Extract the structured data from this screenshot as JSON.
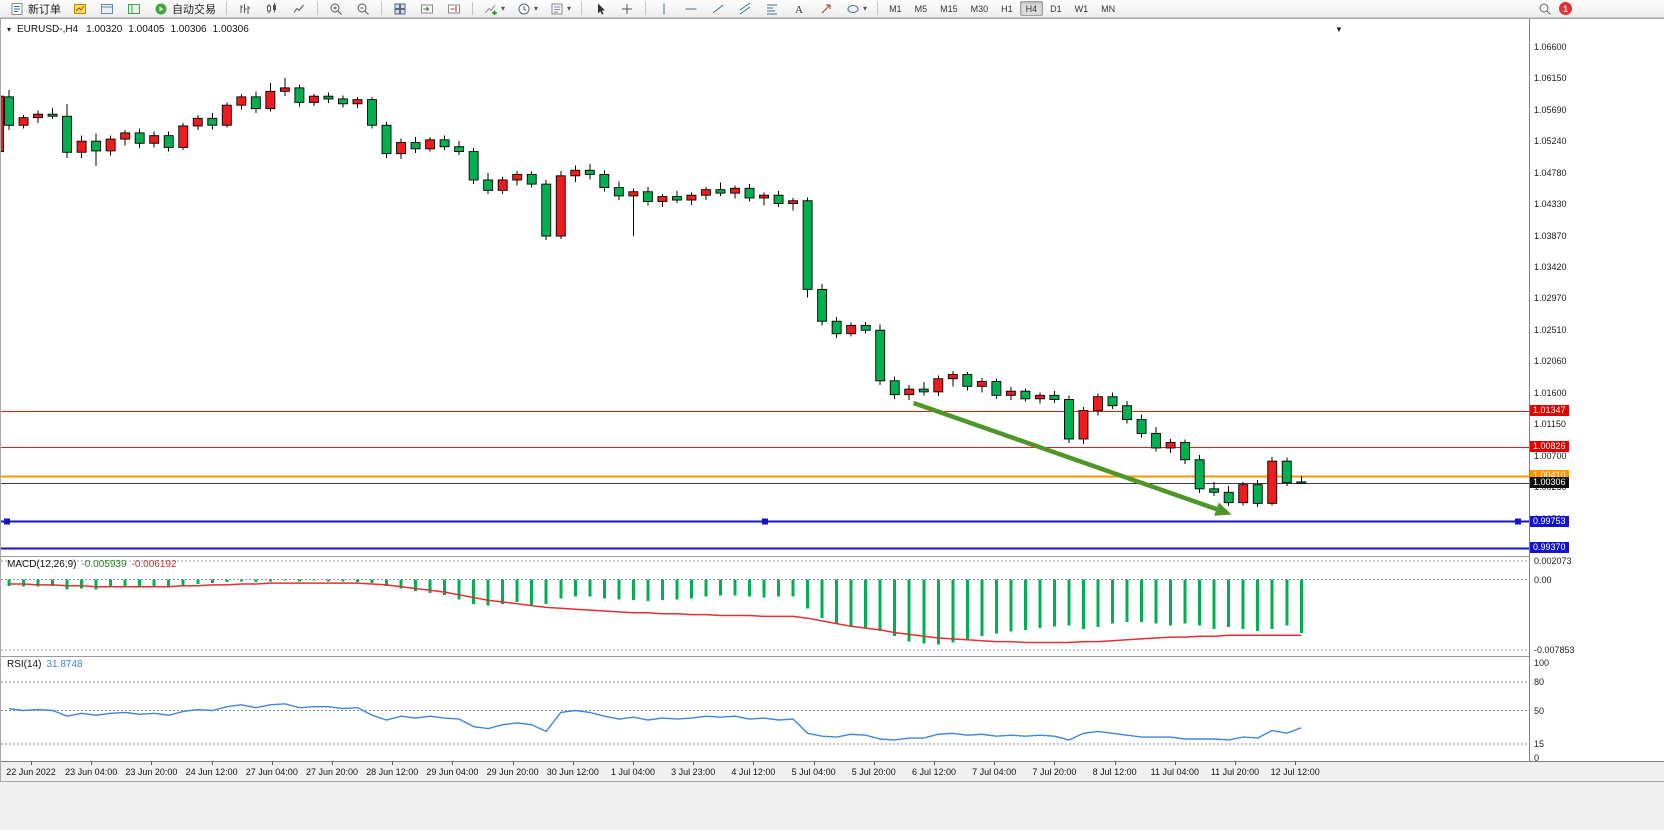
{
  "toolbar": {
    "new_order_label": "新订单",
    "auto_trading_label": "自动交易",
    "groups": [
      {
        "name": "trade",
        "items": [
          {
            "name": "new-order-button",
            "icon": "neworder",
            "label_key": "new_order_label",
            "interactable": true
          },
          {
            "name": "market-watch-icon",
            "icon": "mwatch"
          },
          {
            "name": "data-window-icon",
            "icon": "dwin"
          },
          {
            "name": "navigator-icon",
            "icon": "nav"
          },
          {
            "name": "auto-trading-button",
            "icon": "play",
            "label_key": "auto_trading_label",
            "interactable": true
          }
        ]
      },
      {
        "name": "chart-type",
        "items": [
          {
            "name": "bar-chart-icon",
            "icon": "bars"
          },
          {
            "name": "candlestick-chart-icon",
            "icon": "candles"
          },
          {
            "name": "line-chart-icon",
            "icon": "linech"
          }
        ]
      },
      {
        "name": "zoom",
        "items": [
          {
            "name": "zoom-in-icon",
            "icon": "zoomin"
          },
          {
            "name": "zoom-out-icon",
            "icon": "zoomout"
          }
        ]
      },
      {
        "name": "windows",
        "items": [
          {
            "name": "tile-windows-icon",
            "icon": "tiles"
          },
          {
            "name": "auto-scroll-icon",
            "icon": "scrollr"
          },
          {
            "name": "chart-shift-icon",
            "icon": "shift"
          }
        ]
      },
      {
        "name": "objects",
        "items": [
          {
            "name": "indicators-icon",
            "icon": "indplus",
            "caret": true
          },
          {
            "name": "periods-icon",
            "icon": "clock",
            "caret": true
          },
          {
            "name": "templates-icon",
            "icon": "tpl",
            "caret": true
          }
        ]
      },
      {
        "name": "cursor",
        "items": [
          {
            "name": "cursor-icon",
            "icon": "cursor"
          },
          {
            "name": "crosshair-icon",
            "icon": "cross"
          }
        ]
      },
      {
        "name": "draw",
        "items": [
          {
            "name": "vertical-line-icon",
            "icon": "vline"
          },
          {
            "name": "horizontal-line-icon",
            "icon": "hline"
          },
          {
            "name": "trendline-icon",
            "icon": "trend"
          },
          {
            "name": "channel-icon",
            "icon": "channel"
          },
          {
            "name": "fibonacci-icon",
            "icon": "fib"
          },
          {
            "name": "text-icon",
            "icon": "text"
          },
          {
            "name": "arrows-icon",
            "icon": "arrows"
          },
          {
            "name": "shapes-icon",
            "icon": "shapes",
            "caret": true
          }
        ]
      }
    ],
    "timeframes": [
      {
        "label": "M1"
      },
      {
        "label": "M5"
      },
      {
        "label": "M15"
      },
      {
        "label": "M30"
      },
      {
        "label": "H1"
      },
      {
        "label": "H4",
        "active": true
      },
      {
        "label": "D1"
      },
      {
        "label": "W1"
      },
      {
        "label": "MN"
      }
    ],
    "notification_count": "1"
  },
  "chart": {
    "symbol_header": "EURUSD-,H4",
    "ohlc": {
      "open": "1.00320",
      "high": "1.00405",
      "low": "1.00306",
      "close": "1.00306"
    },
    "price_axis_labels": [
      "1.06600",
      "1.06150",
      "1.05690",
      "1.05240",
      "1.04780",
      "1.04330",
      "1.03870",
      "1.03420",
      "1.02970",
      "1.02510",
      "1.02060",
      "1.01600",
      "1.01150",
      "1.00700",
      "1.00250",
      "0.99790",
      "0.99340"
    ],
    "price_tags": [
      {
        "value": "1.01347",
        "price": 1.01347,
        "bg": "#e00000"
      },
      {
        "value": "1.00826",
        "price": 1.00826,
        "bg": "#e00000"
      },
      {
        "value": "1.00410",
        "price": 1.0041,
        "bg": "#ff9400"
      },
      {
        "value": "1.00306",
        "price": 1.00306,
        "bg": "#101010"
      },
      {
        "value": "0.99753",
        "price": 0.99753,
        "bg": "#1414cc"
      },
      {
        "value": "0.99370",
        "price": 0.9937,
        "bg": "#1414cc"
      }
    ],
    "hlines": [
      {
        "price": 1.01347,
        "color": "#ff1414",
        "width": 1
      },
      {
        "price": 1.00826,
        "color": "#ff1414",
        "width": 1
      },
      {
        "price": 1.0041,
        "color": "#ff9400",
        "width": 2
      },
      {
        "price": 1.00306,
        "color": "#3c3c3c",
        "width": 1
      },
      {
        "price": 0.99753,
        "color": "#1414cc",
        "width": 2,
        "handles": true
      },
      {
        "price": 0.9937,
        "color": "#1414cc",
        "width": 2
      }
    ],
    "arrow": {
      "from_index": 62.3,
      "from_price": 1.0146,
      "to_index": 84.2,
      "to_price": 0.9985,
      "color": "#4d9628"
    },
    "edge_candle": [
      1.0509,
      1.0595,
      1.0505,
      1.0589
    ]
  },
  "chart_data": [
    {
      "type": "candlestick",
      "title": "EURUSD-,H4",
      "ylim": [
        0.9925,
        1.0699
      ],
      "bull_color": "#ee1c1c",
      "bear_color": "#00b050",
      "candles": [
        [
          1.0588,
          1.0598,
          1.054,
          1.0547
        ],
        [
          1.0547,
          1.0562,
          1.0542,
          1.0558
        ],
        [
          1.0558,
          1.0568,
          1.055,
          1.0563
        ],
        [
          1.0563,
          1.0572,
          1.0556,
          1.056
        ],
        [
          1.056,
          1.0578,
          1.05,
          1.0508
        ],
        [
          1.0508,
          1.0532,
          1.05,
          1.0524
        ],
        [
          1.0524,
          1.0535,
          1.0488,
          1.051
        ],
        [
          1.051,
          1.0532,
          1.0503,
          1.0527
        ],
        [
          1.0527,
          1.054,
          1.0518,
          1.0536
        ],
        [
          1.0536,
          1.0542,
          1.0514,
          1.0521
        ],
        [
          1.0521,
          1.0538,
          1.0515,
          1.0532
        ],
        [
          1.0532,
          1.0538,
          1.0509,
          1.0515
        ],
        [
          1.0515,
          1.055,
          1.0511,
          1.0546
        ],
        [
          1.0546,
          1.0562,
          1.054,
          1.0557
        ],
        [
          1.0557,
          1.0565,
          1.0541,
          1.0547
        ],
        [
          1.0547,
          1.058,
          1.0544,
          1.0576
        ],
        [
          1.0576,
          1.0592,
          1.057,
          1.0588
        ],
        [
          1.0588,
          1.0596,
          1.0565,
          1.0571
        ],
        [
          1.0571,
          1.0608,
          1.0567,
          1.0596
        ],
        [
          1.0596,
          1.0615,
          1.0589,
          1.0601
        ],
        [
          1.0601,
          1.0606,
          1.0574,
          1.058
        ],
        [
          1.058,
          1.0592,
          1.0575,
          1.0589
        ],
        [
          1.0589,
          1.0594,
          1.0579,
          1.0585
        ],
        [
          1.0585,
          1.059,
          1.0573,
          1.0578
        ],
        [
          1.0578,
          1.0588,
          1.0572,
          1.0584
        ],
        [
          1.0584,
          1.0588,
          1.0542,
          1.0547
        ],
        [
          1.0547,
          1.0552,
          1.05,
          1.0506
        ],
        [
          1.0506,
          1.0528,
          1.0498,
          1.0522
        ],
        [
          1.0522,
          1.053,
          1.0507,
          1.0513
        ],
        [
          1.0513,
          1.053,
          1.0509,
          1.0526
        ],
        [
          1.0526,
          1.0532,
          1.0511,
          1.0516
        ],
        [
          1.0516,
          1.0524,
          1.0504,
          1.0509
        ],
        [
          1.0509,
          1.0514,
          1.0462,
          1.0468
        ],
        [
          1.0468,
          1.0478,
          1.0448,
          1.0453
        ],
        [
          1.0453,
          1.0472,
          1.0448,
          1.0468
        ],
        [
          1.0468,
          1.0481,
          1.046,
          1.0476
        ],
        [
          1.0476,
          1.048,
          1.0457,
          1.0462
        ],
        [
          1.0462,
          1.0468,
          1.0381,
          1.0387
        ],
        [
          1.0387,
          1.0481,
          1.0383,
          1.0474
        ],
        [
          1.0474,
          1.0489,
          1.0465,
          1.0482
        ],
        [
          1.0482,
          1.0491,
          1.0469,
          1.0476
        ],
        [
          1.0476,
          1.0482,
          1.0451,
          1.0457
        ],
        [
          1.0457,
          1.0466,
          1.0439,
          1.0445
        ],
        [
          1.0445,
          1.0456,
          1.0387,
          1.0451
        ],
        [
          1.0451,
          1.0458,
          1.0431,
          1.0437
        ],
        [
          1.0437,
          1.0448,
          1.0429,
          1.0444
        ],
        [
          1.0444,
          1.0452,
          1.0435,
          1.0439
        ],
        [
          1.0439,
          1.045,
          1.0432,
          1.0446
        ],
        [
          1.0446,
          1.0458,
          1.0439,
          1.0454
        ],
        [
          1.0454,
          1.0464,
          1.0445,
          1.0449
        ],
        [
          1.0449,
          1.046,
          1.0441,
          1.0456
        ],
        [
          1.0456,
          1.0462,
          1.0437,
          1.0442
        ],
        [
          1.0442,
          1.045,
          1.0431,
          1.0446
        ],
        [
          1.0446,
          1.0452,
          1.0429,
          1.0434
        ],
        [
          1.0434,
          1.0442,
          1.0424,
          1.0438
        ],
        [
          1.0438,
          1.0443,
          1.0298,
          1.031
        ],
        [
          1.031,
          1.0318,
          1.0258,
          1.0264
        ],
        [
          1.0264,
          1.027,
          1.024,
          1.0246
        ],
        [
          1.0246,
          1.0262,
          1.0242,
          1.0258
        ],
        [
          1.0258,
          1.0263,
          1.0246,
          1.0251
        ],
        [
          1.0251,
          1.0259,
          1.0172,
          1.0178
        ],
        [
          1.0178,
          1.0184,
          1.0152,
          1.0158
        ],
        [
          1.0158,
          1.0172,
          1.015,
          1.0166
        ],
        [
          1.0166,
          1.0176,
          1.0157,
          1.0162
        ],
        [
          1.0162,
          1.0186,
          1.0156,
          1.0181
        ],
        [
          1.0181,
          1.0192,
          1.017,
          1.0187
        ],
        [
          1.0187,
          1.0191,
          1.0164,
          1.017
        ],
        [
          1.017,
          1.0182,
          1.0161,
          1.0177
        ],
        [
          1.0177,
          1.0181,
          1.0152,
          1.0157
        ],
        [
          1.0157,
          1.0169,
          1.015,
          1.0163
        ],
        [
          1.0163,
          1.0167,
          1.0148,
          1.0152
        ],
        [
          1.0152,
          1.0161,
          1.0145,
          1.0157
        ],
        [
          1.0157,
          1.0163,
          1.0146,
          1.0151
        ],
        [
          1.0151,
          1.0157,
          1.0088,
          1.0094
        ],
        [
          1.0094,
          1.014,
          1.0087,
          1.0135
        ],
        [
          1.0135,
          1.016,
          1.0128,
          1.0155
        ],
        [
          1.0155,
          1.0161,
          1.0137,
          1.0142
        ],
        [
          1.0142,
          1.0149,
          1.0116,
          1.0122
        ],
        [
          1.0122,
          1.0129,
          1.0096,
          1.0102
        ],
        [
          1.0102,
          1.0111,
          1.0076,
          1.0081
        ],
        [
          1.0081,
          1.0094,
          1.0074,
          1.0089
        ],
        [
          1.0089,
          1.0093,
          1.0058,
          1.0064
        ],
        [
          1.0064,
          1.0071,
          1.0016,
          1.0022
        ],
        [
          1.0022,
          1.0032,
          1.0012,
          1.0017
        ],
        [
          1.0017,
          1.0026,
          0.9997,
          1.0002
        ],
        [
          1.0002,
          1.0032,
          0.9998,
          1.0028
        ],
        [
          1.0028,
          1.0035,
          0.9996,
          1.0001
        ],
        [
          1.0001,
          1.0068,
          0.9998,
          1.0062
        ],
        [
          1.0062,
          1.0067,
          1.0026,
          1.0031
        ],
        [
          1.0032,
          1.00405,
          1.00306,
          1.00306
        ]
      ]
    },
    {
      "type": "bar",
      "title": "MACD(12,26,9)",
      "value_main": "-0.005939",
      "value_signal": "-0.006192",
      "ylim": [
        -0.0085,
        0.0025
      ],
      "color": "#00b050",
      "signal_color": "#e03030",
      "axis_labels": [
        {
          "text": "0.002073",
          "value": 0.002073
        },
        {
          "text": "0.00",
          "value": 0
        },
        {
          "text": "-0.007853",
          "value": -0.007853
        }
      ],
      "levels": [
        0.002073,
        0,
        -0.007853
      ],
      "values": [
        -0.0007,
        -0.0008,
        -0.0008,
        -0.0007,
        -0.0011,
        -0.001,
        -0.0011,
        -0.0009,
        -0.0008,
        -0.0009,
        -0.0008,
        -0.0009,
        -0.0007,
        -0.0005,
        -0.0004,
        -0.0003,
        -0.0002,
        -0.0003,
        -0.0002,
        -0.0001,
        -0.0002,
        -0.0001,
        -0.0002,
        -0.0002,
        -0.0003,
        -0.0004,
        -0.0007,
        -0.001,
        -0.0013,
        -0.0015,
        -0.0017,
        -0.0022,
        -0.0027,
        -0.0029,
        -0.0027,
        -0.0025,
        -0.0029,
        -0.0027,
        -0.0021,
        -0.0019,
        -0.0019,
        -0.0021,
        -0.0022,
        -0.0023,
        -0.0024,
        -0.0023,
        -0.0022,
        -0.0021,
        -0.0019,
        -0.0018,
        -0.0018,
        -0.0019,
        -0.002,
        -0.0019,
        -0.0019,
        -0.0032,
        -0.0043,
        -0.0049,
        -0.0052,
        -0.0054,
        -0.0057,
        -0.0063,
        -0.0069,
        -0.0071,
        -0.0072,
        -0.007,
        -0.0066,
        -0.0063,
        -0.006,
        -0.0058,
        -0.0056,
        -0.0054,
        -0.0052,
        -0.0051,
        -0.0055,
        -0.0053,
        -0.0049,
        -0.0047,
        -0.0047,
        -0.0049,
        -0.0051,
        -0.0049,
        -0.0051,
        -0.0055,
        -0.0053,
        -0.0055,
        -0.0057,
        -0.0055,
        -0.0051,
        -0.005939
      ],
      "signal": [
        -0.0005,
        -0.0005,
        -0.0006,
        -0.0006,
        -0.0007,
        -0.0007,
        -0.0008,
        -0.0008,
        -0.0008,
        -0.0008,
        -0.0008,
        -0.0008,
        -0.0007,
        -0.0007,
        -0.0006,
        -0.0006,
        -0.0005,
        -0.0005,
        -0.0004,
        -0.0004,
        -0.0004,
        -0.0004,
        -0.0004,
        -0.0004,
        -0.0004,
        -0.0005,
        -0.0006,
        -0.0008,
        -0.001,
        -0.0012,
        -0.0014,
        -0.0017,
        -0.002,
        -0.0023,
        -0.0025,
        -0.0027,
        -0.0029,
        -0.0031,
        -0.0032,
        -0.0033,
        -0.0034,
        -0.0035,
        -0.0036,
        -0.0037,
        -0.0037,
        -0.0038,
        -0.0038,
        -0.0039,
        -0.0039,
        -0.004,
        -0.004,
        -0.004,
        -0.0041,
        -0.0041,
        -0.0041,
        -0.0043,
        -0.0046,
        -0.0049,
        -0.0052,
        -0.0054,
        -0.0056,
        -0.0059,
        -0.0061,
        -0.0063,
        -0.0065,
        -0.0066,
        -0.0067,
        -0.0068,
        -0.0069,
        -0.0069,
        -0.007,
        -0.007,
        -0.007,
        -0.007,
        -0.0069,
        -0.0069,
        -0.0068,
        -0.0067,
        -0.0066,
        -0.0065,
        -0.0064,
        -0.0064,
        -0.0063,
        -0.0063,
        -0.0062,
        -0.0062,
        -0.0062,
        -0.0062,
        -0.0062,
        -0.006192
      ]
    },
    {
      "type": "line",
      "title": "RSI(14)",
      "value_label": "31.8748",
      "ylim": [
        0,
        100
      ],
      "color": "#3e86d8",
      "levels": [
        80,
        50,
        15
      ],
      "axis_labels": [
        100,
        80,
        50,
        15,
        0
      ],
      "values": [
        52,
        50,
        51,
        50,
        44,
        47,
        45,
        47,
        48,
        46,
        47,
        45,
        49,
        51,
        50,
        54,
        56,
        53,
        56,
        57,
        53,
        54,
        54,
        52,
        53,
        45,
        40,
        44,
        42,
        44,
        42,
        41,
        33,
        31,
        35,
        37,
        35,
        28,
        48,
        50,
        48,
        44,
        41,
        43,
        40,
        42,
        41,
        42,
        44,
        43,
        44,
        41,
        42,
        40,
        41,
        26,
        23,
        22,
        25,
        24,
        20,
        19,
        21,
        21,
        25,
        26,
        24,
        25,
        23,
        24,
        23,
        24,
        23,
        19,
        26,
        28,
        26,
        24,
        22,
        22,
        22,
        20,
        20,
        20,
        19,
        22,
        21,
        29,
        26,
        31.8748
      ]
    }
  ],
  "time_axis": {
    "labels": [
      "22 Jun 2022",
      "23 Jun 04:00",
      "23 Jun 20:00",
      "24 Jun 12:00",
      "27 Jun 04:00",
      "27 Jun 20:00",
      "28 Jun 12:00",
      "29 Jun 04:00",
      "29 Jun 20:00",
      "30 Jun 12:00",
      "1 Jul 04:00",
      "3 Jul 23:00",
      "4 Jul 12:00",
      "5 Jul 04:00",
      "5 Jul 20:00",
      "6 Jul 12:00",
      "7 Jul 04:00",
      "7 Jul 20:00",
      "8 Jul 12:00",
      "11 Jul 04:00",
      "11 Jul 20:00",
      "12 Jul 12:00"
    ]
  }
}
